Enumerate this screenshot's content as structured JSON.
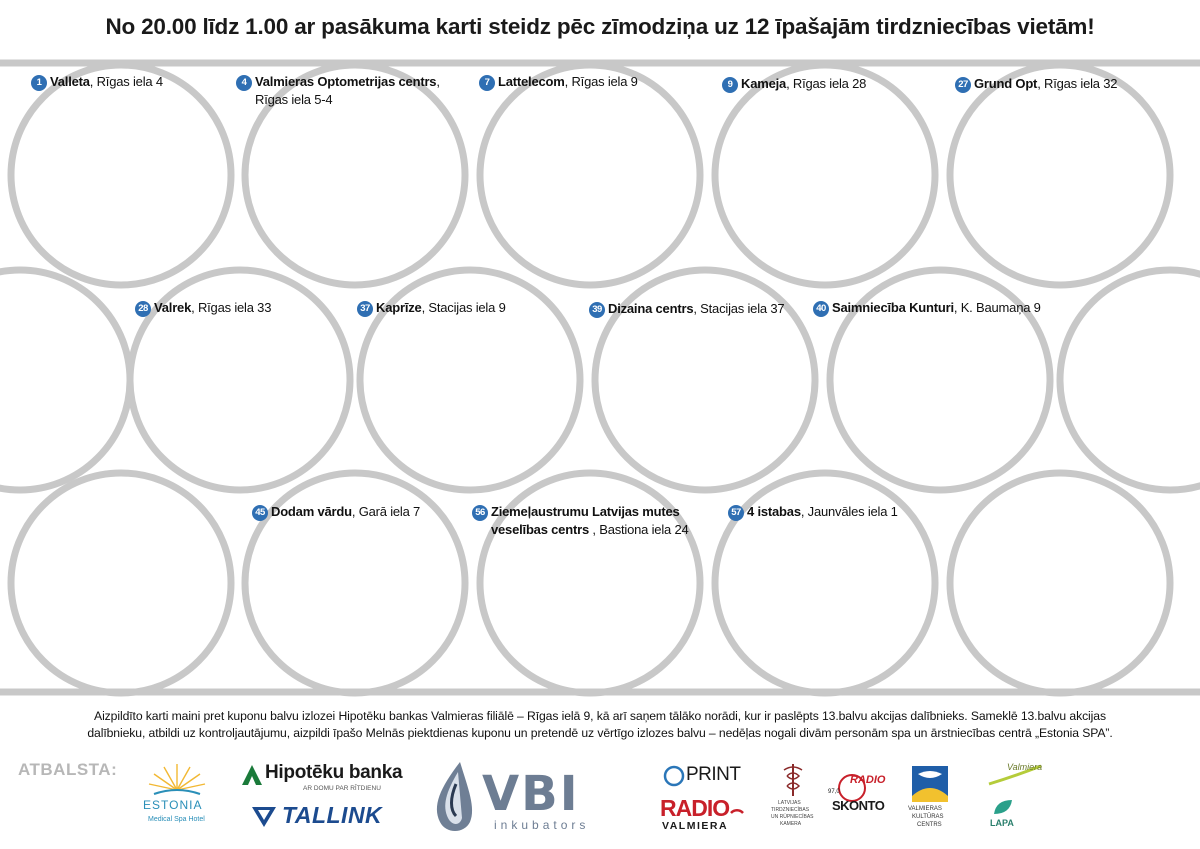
{
  "header": {
    "title": "No 20.00 līdz 1.00 ar pasākuma karti steidz pēc zīmodziņa uz 12 īpašajām tirdzniecības vietām!"
  },
  "stores": [
    {
      "num": "1",
      "name": "Valleta",
      "address": ", Rīgas iela 4"
    },
    {
      "num": "4",
      "name": "Valmieras Optometrijas centrs",
      "address": ",",
      "address2": "Rīgas iela 5-4"
    },
    {
      "num": "7",
      "name": "Lattelecom",
      "address": ", Rīgas iela 9"
    },
    {
      "num": "9",
      "name": "Kameja",
      "address": ", Rīgas iela 28"
    },
    {
      "num": "27",
      "name": "Grund Opt",
      "address": ", Rīgas iela 32"
    },
    {
      "num": "28",
      "name": "Valrek",
      "address": ", Rīgas iela 33"
    },
    {
      "num": "37",
      "name": "Kaprīze",
      "address": ", Stacijas iela 9"
    },
    {
      "num": "39",
      "name": "Dizaina centrs",
      "address": ", Stacijas iela 37"
    },
    {
      "num": "40",
      "name": "Saimniecība Kunturi",
      "address": ", K. Baumaņa 9"
    },
    {
      "num": "45",
      "name": "Dodam vārdu",
      "address": ", Garā iela 7"
    },
    {
      "num": "56",
      "name": "Ziemeļaustrumu Latvijas mutes",
      "name2": "veselības centrs",
      "address": " , Bastiona iela 24"
    },
    {
      "num": "57",
      "name": "4 istabas",
      "address": ", Jaunvāles iela 1"
    }
  ],
  "footer": {
    "line1": "Aizpildīto karti maini pret kuponu balvu izlozei Hipotēku bankas Valmieras filiālē – Rīgas ielā 9, kā arī saņem tālāko norādi, kur ir paslēpts 13.balvu akcijas dalībnieks. Sameklē 13.balvu akcijas",
    "line2": "dalībnieku, atbildi uz kontroljautājumu, aizpildi īpašo Melnās piektdienas kuponu un pretendē uz vērtīgo izlozes balvu – nedēļas nogali divām personām spa un ārstniecības centrā „Estonia SPA”.",
    "support_label": "ATBALSTA:"
  },
  "sponsors": {
    "estonia": {
      "name": "ESTONIA",
      "sub": "Medical Spa Hotel"
    },
    "hipoteku": {
      "name": "Hipotēku banka",
      "tagline": "AR DOMU PAR RĪTDIENU"
    },
    "tallink": {
      "name": "TALLINK"
    },
    "vbi": {
      "name": "VBI",
      "sub": "inkubators"
    },
    "print": {
      "name": "PRINT"
    },
    "radio_valmiera": {
      "name": "RADIO",
      "sub": "VALMIERA"
    },
    "ltrk": {
      "line1": "LATVIJAS",
      "line2": "TIRDZNIECĪBAS",
      "line3": "UN RŪPNIECĪBAS",
      "line4": "KAMERA"
    },
    "skonto": {
      "top": "RADIO",
      "name": "SKONTO",
      "freq": "97,0"
    },
    "vkc": {
      "line1": "VALMIERAS",
      "line2": "KULTŪRAS",
      "line3": "CENTRS"
    },
    "valmiera": {
      "name": "Valmiera"
    },
    "lapa": {
      "name": "LAPA"
    }
  },
  "colors": {
    "circle_stroke": "#c8c8c8",
    "badge_blue": "#2f6fb3",
    "hipoteku_green": "#1a7a3a",
    "tallink_blue": "#1c4b8f",
    "radio_red": "#c8202a"
  }
}
